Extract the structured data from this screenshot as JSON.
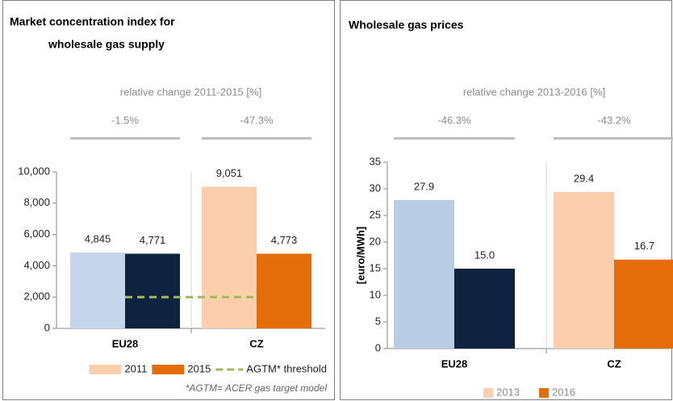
{
  "chart_data": [
    {
      "type": "bar",
      "title": [
        "Market concentration index for",
        "wholesale gas supply"
      ],
      "subtitle": "relative change 2011-2015 [%]",
      "change_labels": [
        "-1.5%",
        "-47.3%"
      ],
      "categories": [
        "EU28",
        "CZ"
      ],
      "series": [
        {
          "name": "2011",
          "color": "#fbcfae",
          "colors": [
            "#c5d5ea",
            "#fbcfae"
          ],
          "values": [
            4845,
            9051
          ],
          "value_labels": [
            "4,845",
            "9,051"
          ]
        },
        {
          "name": "2015",
          "color": "#e46c0a",
          "colors": [
            "#0f2341",
            "#e46c0a"
          ],
          "values": [
            4771,
            4773
          ],
          "value_labels": [
            "4,771",
            "4,773"
          ]
        }
      ],
      "threshold": {
        "name": "AGTM* threshold",
        "value": 2000,
        "color": "#9bbb59"
      },
      "note": "*AGTM= ACER gas target model",
      "ylim": [
        0,
        10000
      ],
      "yticks": [
        0,
        {
          "value": 2000,
          "label": "2,000"
        },
        {
          "value": 4000,
          "label": "4,000"
        },
        {
          "value": 6000,
          "label": "6,000"
        },
        {
          "value": 8000,
          "label": "8,000"
        },
        {
          "value": 10000,
          "label": "10,000"
        }
      ]
    },
    {
      "type": "bar",
      "title": [
        "Wholesale gas prices"
      ],
      "subtitle": "relative change 2013-2016 [%]",
      "change_labels": [
        "-46.3%",
        "-43.2%"
      ],
      "categories": [
        "EU28",
        "CZ"
      ],
      "ylabel": "[euro/MWh]",
      "series": [
        {
          "name": "2013",
          "color": "#fbcfae",
          "colors": [
            "#b9cde5",
            "#fbcfae"
          ],
          "values": [
            27.9,
            29.4
          ],
          "value_labels": [
            "27.9",
            "29.4"
          ]
        },
        {
          "name": "2016",
          "color": "#e46c0a",
          "colors": [
            "#0f2341",
            "#e46c0a"
          ],
          "values": [
            15.0,
            16.7
          ],
          "value_labels": [
            "15.0",
            "16.7"
          ]
        }
      ],
      "ylim": [
        0,
        35
      ],
      "yticks": [
        0,
        5,
        10,
        15,
        20,
        25,
        30,
        35
      ]
    }
  ]
}
